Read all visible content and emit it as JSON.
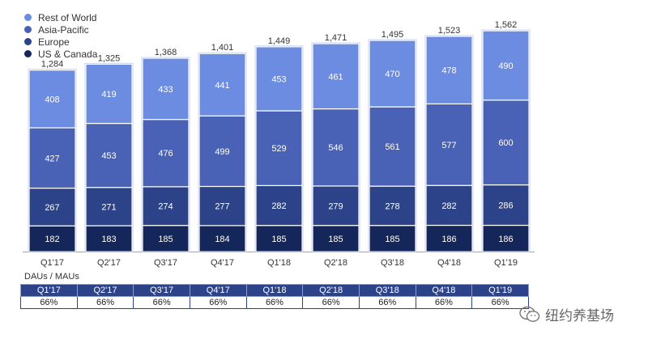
{
  "chart_data": {
    "type": "bar",
    "stacked": true,
    "categories": [
      "Q1'17",
      "Q2'17",
      "Q3'17",
      "Q4'17",
      "Q1'18",
      "Q2'18",
      "Q3'18",
      "Q4'18",
      "Q1'19"
    ],
    "totals": [
      "1,284",
      "1,325",
      "1,368",
      "1,401",
      "1,449",
      "1,471",
      "1,495",
      "1,523",
      "1,562"
    ],
    "series": [
      {
        "name": "US & Canada",
        "color": "#15265a",
        "values": [
          182,
          183,
          185,
          184,
          185,
          185,
          185,
          186,
          186
        ]
      },
      {
        "name": "Europe",
        "color": "#2d4389",
        "values": [
          267,
          271,
          274,
          277,
          282,
          279,
          278,
          282,
          286
        ]
      },
      {
        "name": "Asia-Pacific",
        "color": "#4a62b5",
        "values": [
          427,
          453,
          476,
          499,
          529,
          546,
          561,
          577,
          600
        ]
      },
      {
        "name": "Rest of World",
        "color": "#6b8ce0",
        "values": [
          408,
          419,
          433,
          441,
          453,
          461,
          470,
          478,
          490
        ]
      }
    ],
    "legend_order": [
      "Rest of World",
      "Asia-Pacific",
      "Europe",
      "US & Canada"
    ],
    "legend_position": "top-left"
  },
  "ratio_table": {
    "title": "DAUs / MAUs",
    "values": [
      "66%",
      "66%",
      "66%",
      "66%",
      "66%",
      "66%",
      "66%",
      "66%",
      "66%"
    ]
  },
  "watermark": {
    "icon": "wechat-icon",
    "text": "纽约养基场"
  }
}
